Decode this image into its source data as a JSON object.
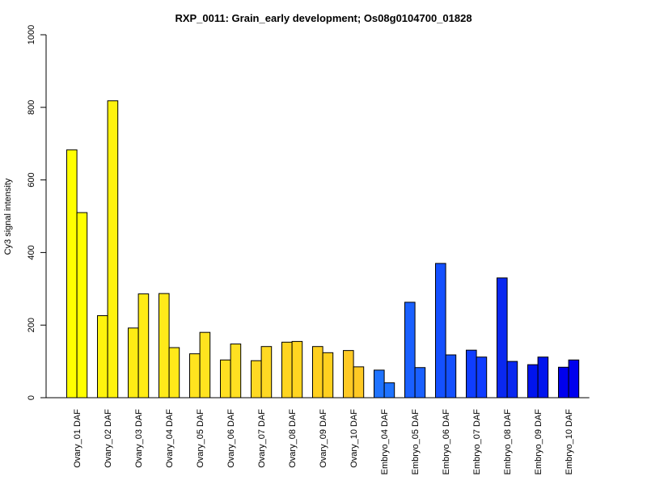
{
  "chart_data": {
    "type": "bar",
    "title": "RXP_0011: Grain_early development; Os08g0104700_01828",
    "xlabel": "",
    "ylabel": "Cy3 signal intensity",
    "ylim": [
      0,
      1000
    ],
    "yticks": [
      0,
      200,
      400,
      600,
      800,
      1000
    ],
    "grid": false,
    "legend": "none",
    "categories": [
      "Ovary_01 DAF",
      "Ovary_02 DAF",
      "Ovary_03 DAF",
      "Ovary_04 DAF",
      "Ovary_05 DAF",
      "Ovary_06 DAF",
      "Ovary_07 DAF",
      "Ovary_08 DAF",
      "Ovary_09 DAF",
      "Ovary_10 DAF",
      "Embryo_04 DAF",
      "Embryo_05 DAF",
      "Embryo_06 DAF",
      "Embryo_07 DAF",
      "Embryo_08 DAF",
      "Embryo_09 DAF",
      "Embryo_10 DAF"
    ],
    "series": [
      {
        "values": [
          683,
          226,
          192,
          287,
          121,
          104,
          102,
          153,
          141,
          130,
          76,
          263,
          370,
          131,
          330,
          91,
          84
        ]
      },
      {
        "values": [
          510,
          818,
          286,
          138,
          180,
          148,
          141,
          155,
          124,
          85,
          41,
          83,
          118,
          112,
          100,
          112,
          104
        ]
      }
    ],
    "group_colors": [
      "#ffff00",
      "#fff30d",
      "#ffec14",
      "#ffe91a",
      "#ffe31f",
      "#ffe021",
      "#ffd923",
      "#ffd521",
      "#ffd01f",
      "#ffc924",
      "#1f73ff",
      "#1a60ff",
      "#1450ff",
      "#0f3dff",
      "#0a28f0",
      "#0014ee",
      "#0000ee"
    ]
  }
}
